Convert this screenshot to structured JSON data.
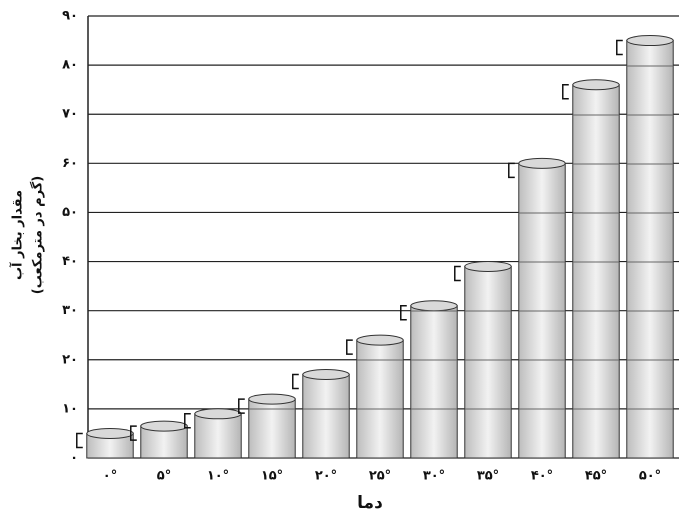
{
  "chart_data": {
    "type": "bar",
    "y_label": "مقدار بخار آب",
    "y_label_unit": "(گرم در مترمکعب)",
    "x_label": "دما",
    "categories": [
      "۰°",
      "۵°",
      "۱۰°",
      "۱۵°",
      "۲۰°",
      "۲۵°",
      "۳۰°",
      "۳۵°",
      "۴۰°",
      "۴۵°",
      "۵۰°"
    ],
    "values": [
      5,
      6.5,
      9,
      12,
      17,
      24,
      31,
      39,
      60,
      76,
      85
    ],
    "color": "#d9d9d9",
    "ylim": [
      0,
      90
    ],
    "yticks": [
      {
        "value": 0,
        "label": "۰"
      },
      {
        "value": 10,
        "label": "۱۰"
      },
      {
        "value": 20,
        "label": "۲۰"
      },
      {
        "value": 30,
        "label": "۳۰"
      },
      {
        "value": 40,
        "label": "۴۰"
      },
      {
        "value": 50,
        "label": "۵۰"
      },
      {
        "value": 60,
        "label": "۶۰"
      },
      {
        "value": 70,
        "label": "۷۰"
      },
      {
        "value": 80,
        "label": "۸۰"
      },
      {
        "value": 90,
        "label": "۹۰"
      }
    ],
    "grid": true
  }
}
